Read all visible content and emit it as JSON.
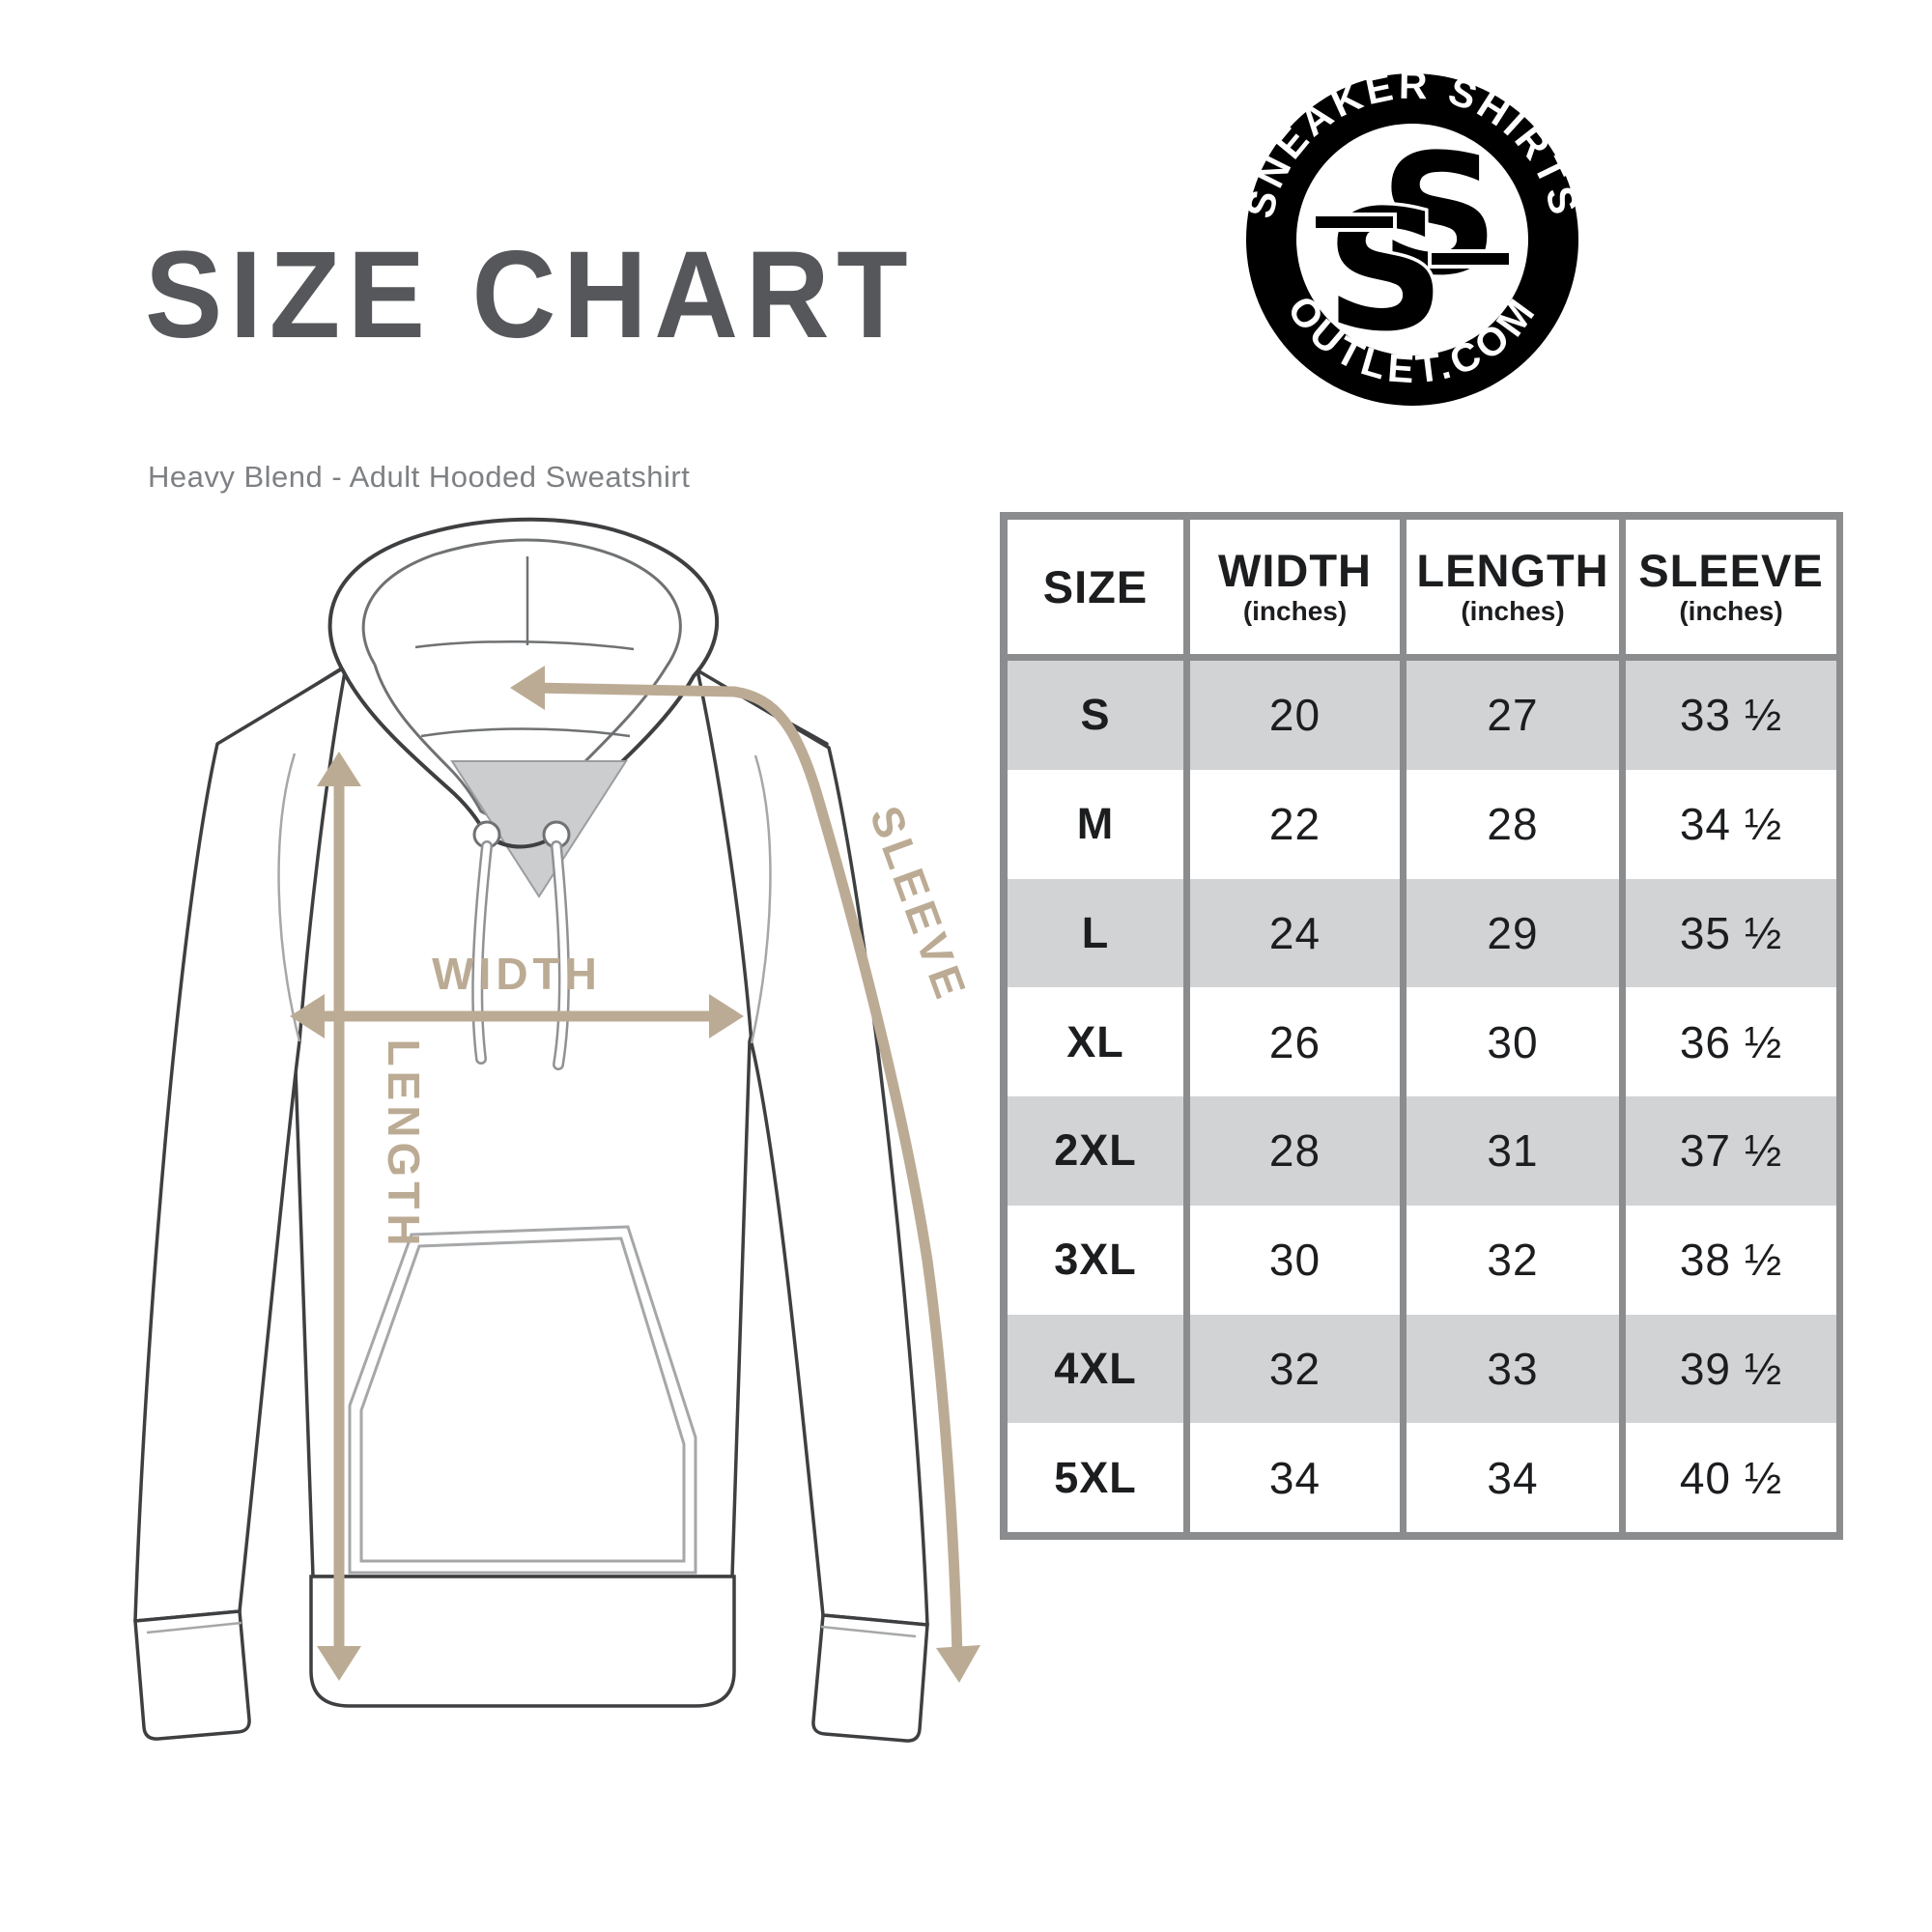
{
  "header": {
    "title": "SIZE CHART",
    "subtitle": "Heavy Blend - Adult Hooded Sweatshirt",
    "title_color": "#55575b",
    "subtitle_color": "#7e8083"
  },
  "logo": {
    "top_text": "SNEAKER SHIRTS",
    "bottom_text": "OUTLET.COM",
    "monogram": "SS",
    "bg_color": "#000000",
    "text_color": "#ffffff"
  },
  "diagram": {
    "garment": "hooded-sweatshirt-outline",
    "width_label": "WIDTH",
    "length_label": "LENGTH",
    "sleeve_label": "SLEEVE",
    "arrow_color": "#bcab94",
    "outline_color": "#3e3f41"
  },
  "chart_data": {
    "type": "table",
    "title": "SIZE CHART",
    "columns": [
      {
        "label": "SIZE",
        "sub": ""
      },
      {
        "label": "WIDTH",
        "sub": "(inches)"
      },
      {
        "label": "LENGTH",
        "sub": "(inches)"
      },
      {
        "label": "SLEEVE",
        "sub": "(inches)"
      }
    ],
    "rows": [
      {
        "size": "S",
        "width": "20",
        "length": "27",
        "sleeve": "33 ½"
      },
      {
        "size": "M",
        "width": "22",
        "length": "28",
        "sleeve": "34 ½"
      },
      {
        "size": "L",
        "width": "24",
        "length": "29",
        "sleeve": "35 ½"
      },
      {
        "size": "XL",
        "width": "26",
        "length": "30",
        "sleeve": "36 ½"
      },
      {
        "size": "2XL",
        "width": "28",
        "length": "31",
        "sleeve": "37 ½"
      },
      {
        "size": "3XL",
        "width": "30",
        "length": "32",
        "sleeve": "38 ½"
      },
      {
        "size": "4XL",
        "width": "32",
        "length": "33",
        "sleeve": "39 ½"
      },
      {
        "size": "5XL",
        "width": "34",
        "length": "34",
        "sleeve": "40 ½"
      }
    ],
    "stripe_color": "#d2d3d5",
    "border_color": "#8a8c8e",
    "layout": "grid on, header row white, data rows alternate gray/white starting gray"
  }
}
